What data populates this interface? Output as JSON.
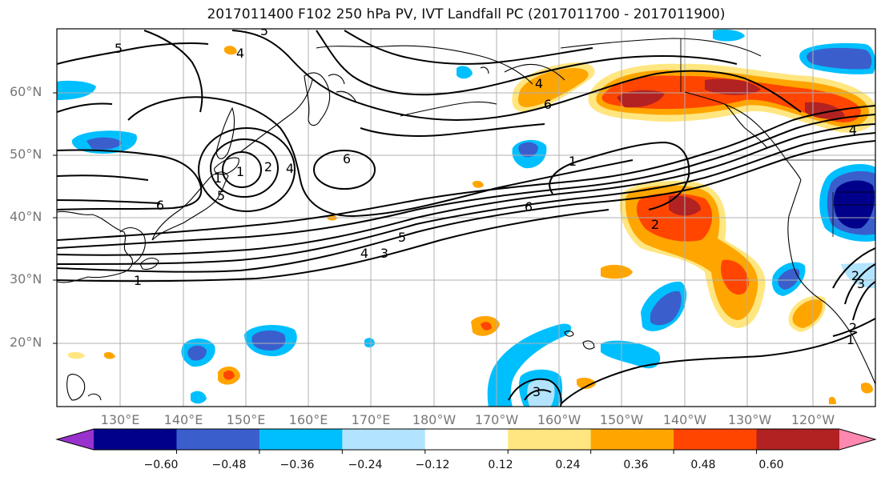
{
  "title": "2017011400 F102 250 hPa PV, IVT Landfall PC (2017011700 - 2017011900)",
  "lat_labels": [
    "60°N",
    "50°N",
    "40°N",
    "30°N",
    "20°N"
  ],
  "lon_labels": [
    "130°E",
    "140°E",
    "150°E",
    "160°E",
    "170°E",
    "180°W",
    "170°W",
    "160°W",
    "150°W",
    "140°W",
    "130°W",
    "120°W"
  ],
  "colorbar": {
    "ticks": [
      "−0.60",
      "−0.48",
      "−0.36",
      "−0.24",
      "−0.12",
      "0.12",
      "0.24",
      "0.36",
      "0.48",
      "0.60"
    ],
    "colors": [
      "#9932cc",
      "#00008b",
      "#3a5fcd",
      "#00bfff",
      "#b2e4ff",
      "#ffffff",
      "#ffe680",
      "#ffa500",
      "#ff4500",
      "#b22222",
      "#ff88b0"
    ]
  },
  "contour_labels": [
    "5",
    "4",
    "5",
    "6",
    "1",
    "2",
    "4",
    "5",
    "6",
    "6",
    "1",
    "6",
    "1",
    "5",
    "4",
    "3",
    "1",
    "2",
    "4",
    "4",
    "2",
    "1",
    "2",
    "3",
    "3"
  ],
  "fill_colors": {
    "light_orange": "#ffe680",
    "orange": "#ffa500",
    "red_orange": "#ff4500",
    "dark_red": "#b22222",
    "light_blue": "#b2e4ff",
    "sky_blue": "#00bfff",
    "mid_blue": "#3a5fcd",
    "navy": "#00008b"
  }
}
